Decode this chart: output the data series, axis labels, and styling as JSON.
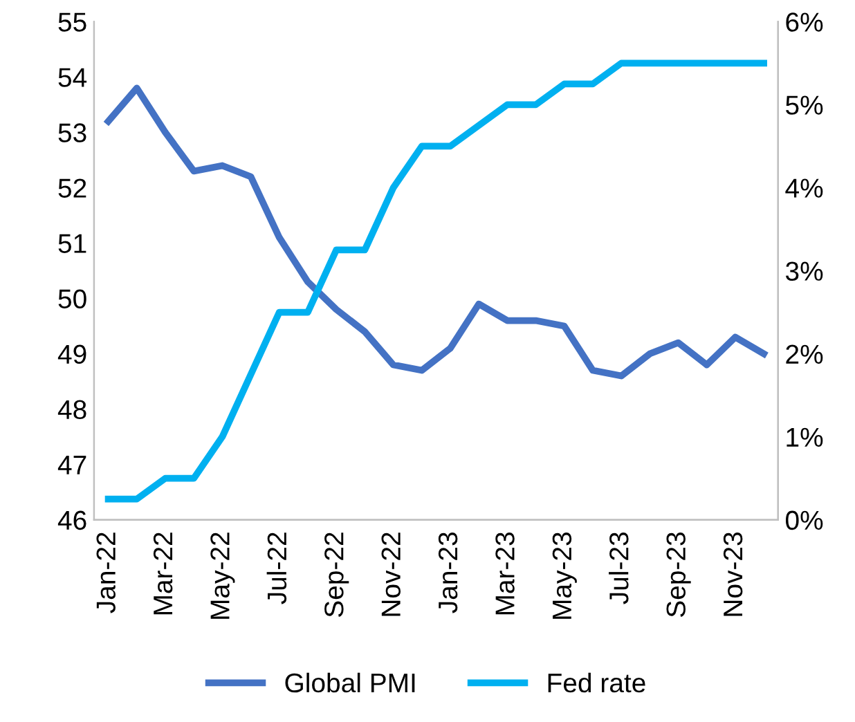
{
  "chart_data": {
    "type": "line",
    "categories": [
      "Jan-22",
      null,
      "Mar-22",
      null,
      "May-22",
      null,
      "Jul-22",
      null,
      "Sep-22",
      null,
      "Nov-22",
      null,
      "Jan-23",
      null,
      "Mar-23",
      null,
      "May-23",
      null,
      "Jul-23",
      null,
      "Sep-23",
      null,
      "Nov-23",
      null
    ],
    "series": [
      {
        "name": "Global PMI",
        "color": "#4472c4",
        "values": [
          53.2,
          53.8,
          53.0,
          52.3,
          52.4,
          52.2,
          51.1,
          50.3,
          49.8,
          49.4,
          48.8,
          48.7,
          49.1,
          49.9,
          49.6,
          49.6,
          49.5,
          48.7,
          48.6,
          49.0,
          49.2,
          48.8,
          49.3,
          49.0
        ]
      },
      {
        "name": "Fed rate",
        "color": "#00b0f0",
        "axis": "y2",
        "values": [
          0.25,
          0.25,
          0.5,
          0.5,
          1.0,
          1.75,
          2.5,
          2.5,
          3.25,
          3.25,
          4.0,
          4.5,
          4.5,
          4.75,
          5.0,
          5.0,
          5.25,
          5.25,
          5.5,
          5.5,
          5.5,
          5.5,
          5.5,
          5.5
        ]
      }
    ],
    "ylim": [
      46,
      55
    ],
    "yticks": [
      46,
      47,
      48,
      49,
      50,
      51,
      52,
      53,
      54,
      55
    ],
    "y2lim": [
      0,
      6
    ],
    "y2ticks": [
      {
        "value": 0,
        "label": "0%"
      },
      {
        "value": 1,
        "label": "1%"
      },
      {
        "value": 2,
        "label": "2%"
      },
      {
        "value": 3,
        "label": "3%"
      },
      {
        "value": 4,
        "label": "4%"
      },
      {
        "value": 5,
        "label": "5%"
      },
      {
        "value": 6,
        "label": "6%"
      }
    ],
    "grid": false,
    "legend": "bottom",
    "marker": "none",
    "line_style": "solid"
  }
}
